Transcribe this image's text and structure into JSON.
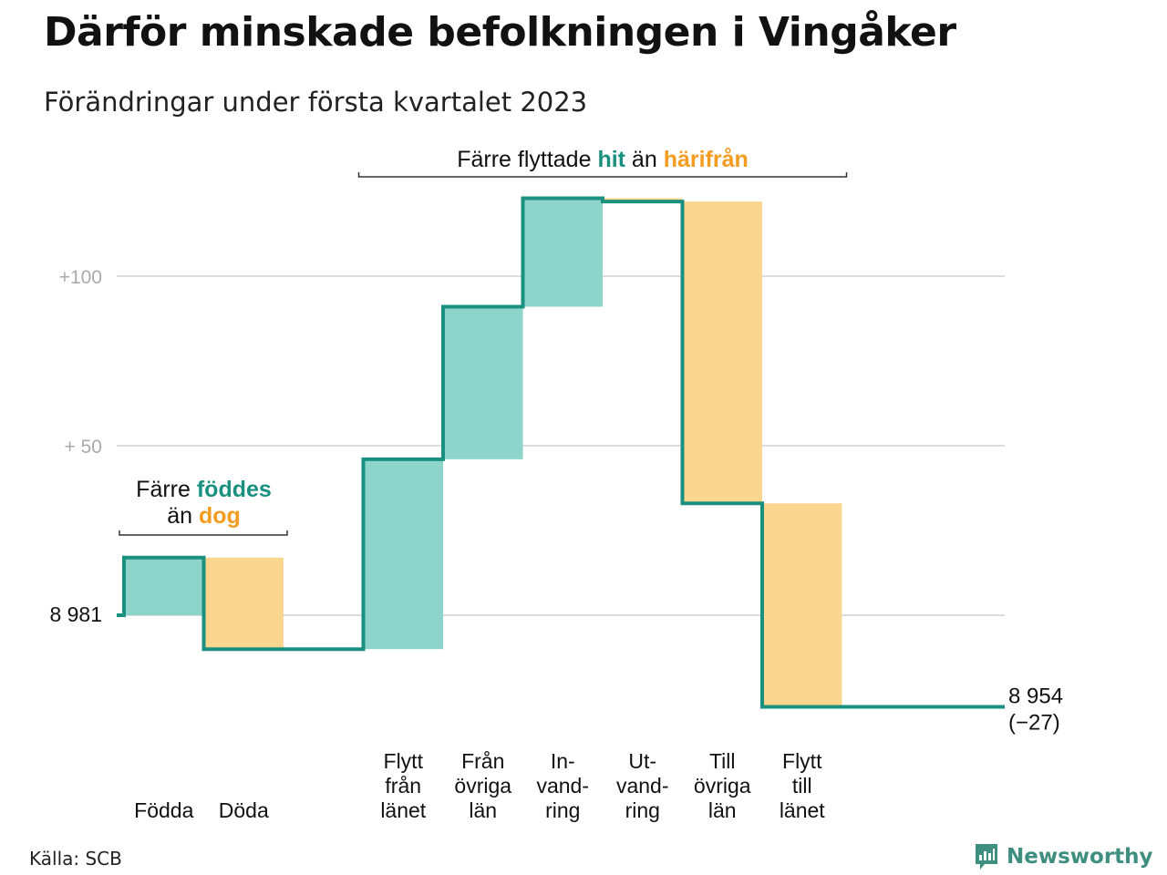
{
  "title": "Därför minskade befolkningen i Vingåker",
  "subtitle": "Förändringar under första kvartalet 2023",
  "source": "Källa: SCB",
  "logo": {
    "text": "Newsworthy",
    "icon": "chart-speech-bubble-icon"
  },
  "colors": {
    "line": "#1a9080",
    "positive": "#8dd5cb",
    "negative": "#fbd68f",
    "orange_text": "#f39c1f",
    "teal_text": "#1a9080",
    "grid": "#dcdcdc",
    "tick": "#aaaaaa"
  },
  "chart_data": {
    "type": "waterfall",
    "start": {
      "value": 8981,
      "label": "8 981"
    },
    "end": {
      "value": 8954,
      "label_lines": [
        "8 954",
        "(−27)"
      ]
    },
    "y_ticks": [
      {
        "offset": 100,
        "label": "+100"
      },
      {
        "offset": 50,
        "label": "+ 50"
      }
    ],
    "ylim_offset": [
      -30,
      125
    ],
    "steps": [
      {
        "label_lines": [
          "Födda"
        ],
        "change": 17,
        "sign": "positive"
      },
      {
        "label_lines": [
          "Döda"
        ],
        "change": -27,
        "sign": "negative"
      },
      {
        "label_lines": [
          "Flytt",
          "från",
          "länet"
        ],
        "change": 56,
        "sign": "positive"
      },
      {
        "label_lines": [
          "Från",
          "övriga",
          "län"
        ],
        "change": 45,
        "sign": "positive"
      },
      {
        "label_lines": [
          "In-",
          "vand-",
          "ring"
        ],
        "change": 32,
        "sign": "positive"
      },
      {
        "label_lines": [
          "Ut-",
          "vand-",
          "ring"
        ],
        "change": -1,
        "sign": "negative"
      },
      {
        "label_lines": [
          "Till",
          "övriga",
          "län"
        ],
        "change": -89,
        "sign": "negative"
      },
      {
        "label_lines": [
          "Flytt",
          "till",
          "länet"
        ],
        "change": -60,
        "sign": "negative"
      }
    ],
    "annotations": [
      {
        "parts": [
          {
            "text": "Färre ",
            "style": "plain"
          },
          {
            "text": "föddes",
            "style": "teal"
          },
          {
            "text": "än ",
            "style": "plain",
            "newline": true
          },
          {
            "text": "dog",
            "style": "orange"
          }
        ]
      },
      {
        "parts": [
          {
            "text": "Färre flyttade ",
            "style": "plain"
          },
          {
            "text": "hit",
            "style": "teal"
          },
          {
            "text": " än ",
            "style": "plain"
          },
          {
            "text": "härifrån",
            "style": "orange"
          }
        ]
      }
    ]
  }
}
